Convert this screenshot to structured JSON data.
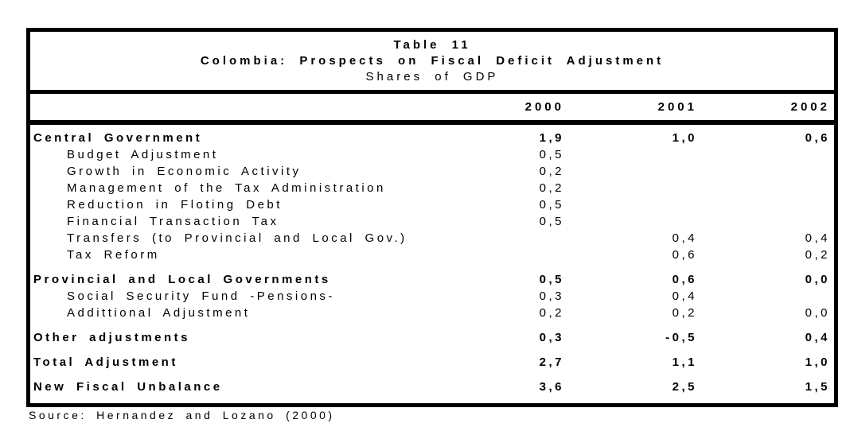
{
  "table": {
    "title_line1": "Table 11",
    "title_line2": "Colombia: Prospects on Fiscal Deficit Adjustment",
    "title_line3": "Shares of GDP",
    "columns": [
      "2000",
      "2001",
      "2002"
    ],
    "rows": [
      {
        "label": "Central Government",
        "bold": true,
        "indent": false,
        "gap": false,
        "values": [
          "1,9",
          "1,0",
          "0,6"
        ]
      },
      {
        "label": "Budget Adjustment",
        "bold": false,
        "indent": true,
        "gap": false,
        "values": [
          "0,5",
          "",
          ""
        ]
      },
      {
        "label": "Growth in Economic Activity",
        "bold": false,
        "indent": true,
        "gap": false,
        "values": [
          "0,2",
          "",
          ""
        ]
      },
      {
        "label": "Management of the Tax Administration",
        "bold": false,
        "indent": true,
        "gap": false,
        "values": [
          "0,2",
          "",
          ""
        ]
      },
      {
        "label": "Reduction in Floting Debt",
        "bold": false,
        "indent": true,
        "gap": false,
        "values": [
          "0,5",
          "",
          ""
        ]
      },
      {
        "label": "Financial Transaction Tax",
        "bold": false,
        "indent": true,
        "gap": false,
        "values": [
          "0,5",
          "",
          ""
        ]
      },
      {
        "label": "Transfers (to Provincial and Local Gov.)",
        "bold": false,
        "indent": true,
        "gap": false,
        "values": [
          "",
          "0,4",
          "0,4"
        ]
      },
      {
        "label": "Tax Reform",
        "bold": false,
        "indent": true,
        "gap": false,
        "values": [
          "",
          "0,6",
          "0,2"
        ]
      },
      {
        "label": "Provincial and Local Governments",
        "bold": true,
        "indent": false,
        "gap": true,
        "values": [
          "0,5",
          "0,6",
          "0,0"
        ]
      },
      {
        "label": "Social Security Fund -Pensions-",
        "bold": false,
        "indent": true,
        "gap": false,
        "values": [
          "0,3",
          "0,4",
          ""
        ]
      },
      {
        "label": "Addittional Adjustment",
        "bold": false,
        "indent": true,
        "gap": false,
        "values": [
          "0,2",
          "0,2",
          "0,0"
        ]
      },
      {
        "label": "Other adjustments",
        "bold": true,
        "indent": false,
        "gap": true,
        "values": [
          "0,3",
          "-0,5",
          "0,4"
        ]
      },
      {
        "label": "Total Adjustment",
        "bold": true,
        "indent": false,
        "gap": true,
        "values": [
          "2,7",
          "1,1",
          "1,0"
        ]
      },
      {
        "label": "New Fiscal Unbalance",
        "bold": true,
        "indent": false,
        "gap": true,
        "values": [
          "3,6",
          "2,5",
          "1,5"
        ]
      }
    ],
    "source": "Source: Hernandez and Lozano (2000)"
  }
}
